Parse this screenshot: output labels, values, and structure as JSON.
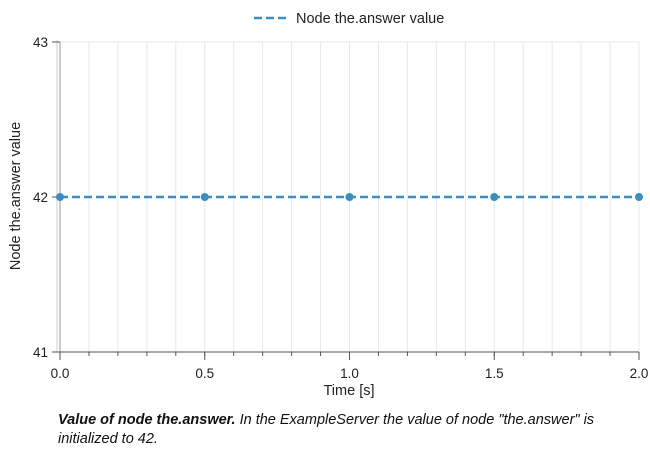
{
  "chart_data": {
    "type": "line",
    "legend_label": "Node the.answer value",
    "legend_position": "top-center",
    "xlabel": "Time [s]",
    "ylabel": "Node the.answer value",
    "xlim": [
      0,
      2
    ],
    "ylim": [
      41,
      43
    ],
    "x_ticks": [
      "0.0",
      "0.5",
      "1.0",
      "1.5",
      "2.0"
    ],
    "x_tick_values": [
      0,
      0.5,
      1.0,
      1.5,
      2.0
    ],
    "y_ticks": [
      "41",
      "42",
      "43"
    ],
    "y_tick_values": [
      41,
      42,
      43
    ],
    "grid": true,
    "line_style": "dashed",
    "series_color": "#3a8fc0",
    "series": [
      {
        "name": "Node the.answer value",
        "x": [
          0,
          0.5,
          1.0,
          1.5,
          2.0
        ],
        "y": [
          42,
          42,
          42,
          42,
          42
        ]
      }
    ]
  },
  "caption": {
    "title": "Value of node the.answer.",
    "text": " In the ExampleServer the value of node \"the.answer\" is initialized to 42."
  }
}
